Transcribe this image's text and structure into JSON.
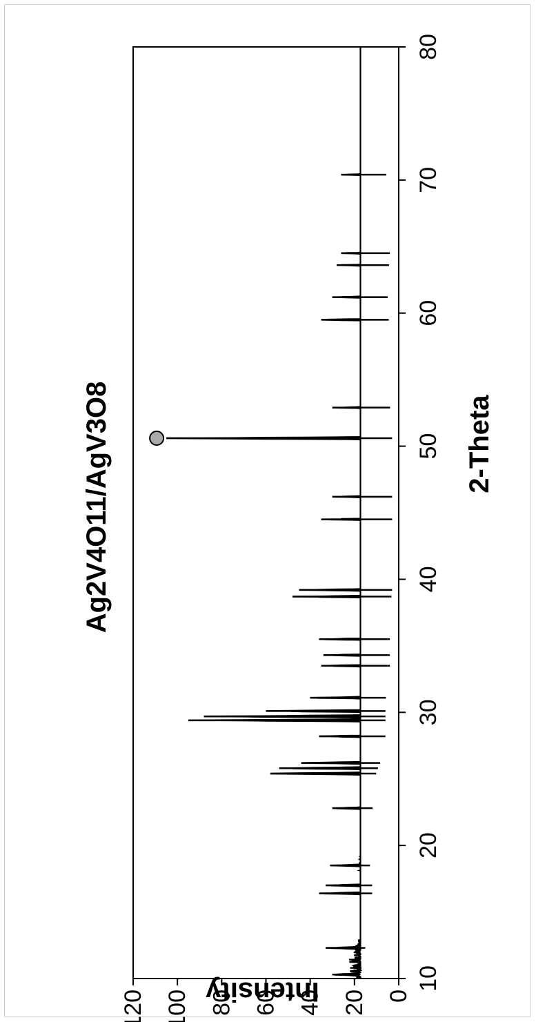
{
  "chart_data": {
    "type": "line",
    "title": "Ag2V4O11/AgV3O8",
    "xlabel": "2-Theta",
    "ylabel": "Intensity",
    "xlim": [
      10,
      80
    ],
    "ylim": [
      0,
      120
    ],
    "xticks": [
      10,
      20,
      30,
      40,
      50,
      60,
      70,
      80
    ],
    "yticks": [
      0,
      20,
      40,
      60,
      80,
      100,
      120
    ],
    "grid": false,
    "legend": "none",
    "series": [
      {
        "color": "#000000",
        "baseline_points": [
          [
            10,
            17
          ],
          [
            11,
            18
          ],
          [
            12,
            16
          ],
          [
            13,
            13
          ],
          [
            14,
            11
          ],
          [
            15,
            11
          ],
          [
            16,
            12
          ],
          [
            17,
            12
          ],
          [
            18,
            13
          ],
          [
            19,
            13
          ],
          [
            20,
            12
          ],
          [
            21,
            11
          ],
          [
            22,
            11
          ],
          [
            23,
            12
          ],
          [
            24,
            12
          ],
          [
            25,
            11
          ],
          [
            26,
            9
          ],
          [
            27,
            6
          ],
          [
            28,
            6
          ],
          [
            29,
            6
          ],
          [
            30,
            6
          ],
          [
            31,
            6
          ],
          [
            32,
            4
          ],
          [
            33,
            4
          ],
          [
            34,
            4
          ],
          [
            35,
            4
          ],
          [
            36,
            4
          ],
          [
            37,
            4
          ],
          [
            38,
            4
          ],
          [
            39,
            3
          ],
          [
            40,
            3
          ],
          [
            41,
            3
          ],
          [
            42,
            3
          ],
          [
            43,
            3
          ],
          [
            44,
            3
          ],
          [
            45,
            3
          ],
          [
            46,
            3
          ],
          [
            47,
            3
          ],
          [
            48,
            3
          ],
          [
            49,
            3
          ],
          [
            50,
            3
          ],
          [
            51,
            3
          ],
          [
            52,
            3
          ],
          [
            53,
            4
          ],
          [
            54,
            4
          ],
          [
            55,
            4
          ],
          [
            56,
            4
          ],
          [
            57,
            4
          ],
          [
            58,
            4
          ],
          [
            59,
            4
          ],
          [
            60,
            5
          ],
          [
            61,
            5
          ],
          [
            62,
            5
          ],
          [
            63,
            5
          ],
          [
            64,
            4
          ],
          [
            65,
            4
          ],
          [
            66,
            4
          ],
          [
            67,
            4
          ],
          [
            68,
            4
          ],
          [
            69,
            5
          ],
          [
            70,
            6
          ],
          [
            71,
            5
          ],
          [
            72,
            4
          ],
          [
            73,
            4
          ],
          [
            74,
            4
          ],
          [
            75,
            5
          ],
          [
            76,
            4
          ],
          [
            77,
            4
          ],
          [
            78,
            4
          ],
          [
            79,
            4
          ],
          [
            80,
            4
          ]
        ],
        "peaks": [
          [
            10.3,
            30
          ],
          [
            12.3,
            33
          ],
          [
            16.4,
            36
          ],
          [
            17.0,
            33
          ],
          [
            18.5,
            31
          ],
          [
            22.8,
            30
          ],
          [
            25.4,
            58
          ],
          [
            25.8,
            54
          ],
          [
            26.2,
            44
          ],
          [
            28.2,
            36
          ],
          [
            29.4,
            95
          ],
          [
            29.7,
            88
          ],
          [
            30.1,
            60
          ],
          [
            31.1,
            40
          ],
          [
            33.5,
            35
          ],
          [
            34.3,
            34
          ],
          [
            35.5,
            36
          ],
          [
            38.7,
            48
          ],
          [
            39.2,
            45
          ],
          [
            44.5,
            35
          ],
          [
            46.2,
            30
          ],
          [
            50.6,
            105
          ],
          [
            52.9,
            30
          ],
          [
            59.5,
            35
          ],
          [
            61.2,
            30
          ],
          [
            63.6,
            28
          ],
          [
            64.5,
            26
          ],
          [
            70.4,
            26
          ]
        ],
        "noise_amplitude": 5
      }
    ],
    "annotations": [
      {
        "type": "marker",
        "shape": "circle",
        "x": 50.6,
        "y": 105,
        "color": "#aaaaaa"
      }
    ]
  }
}
